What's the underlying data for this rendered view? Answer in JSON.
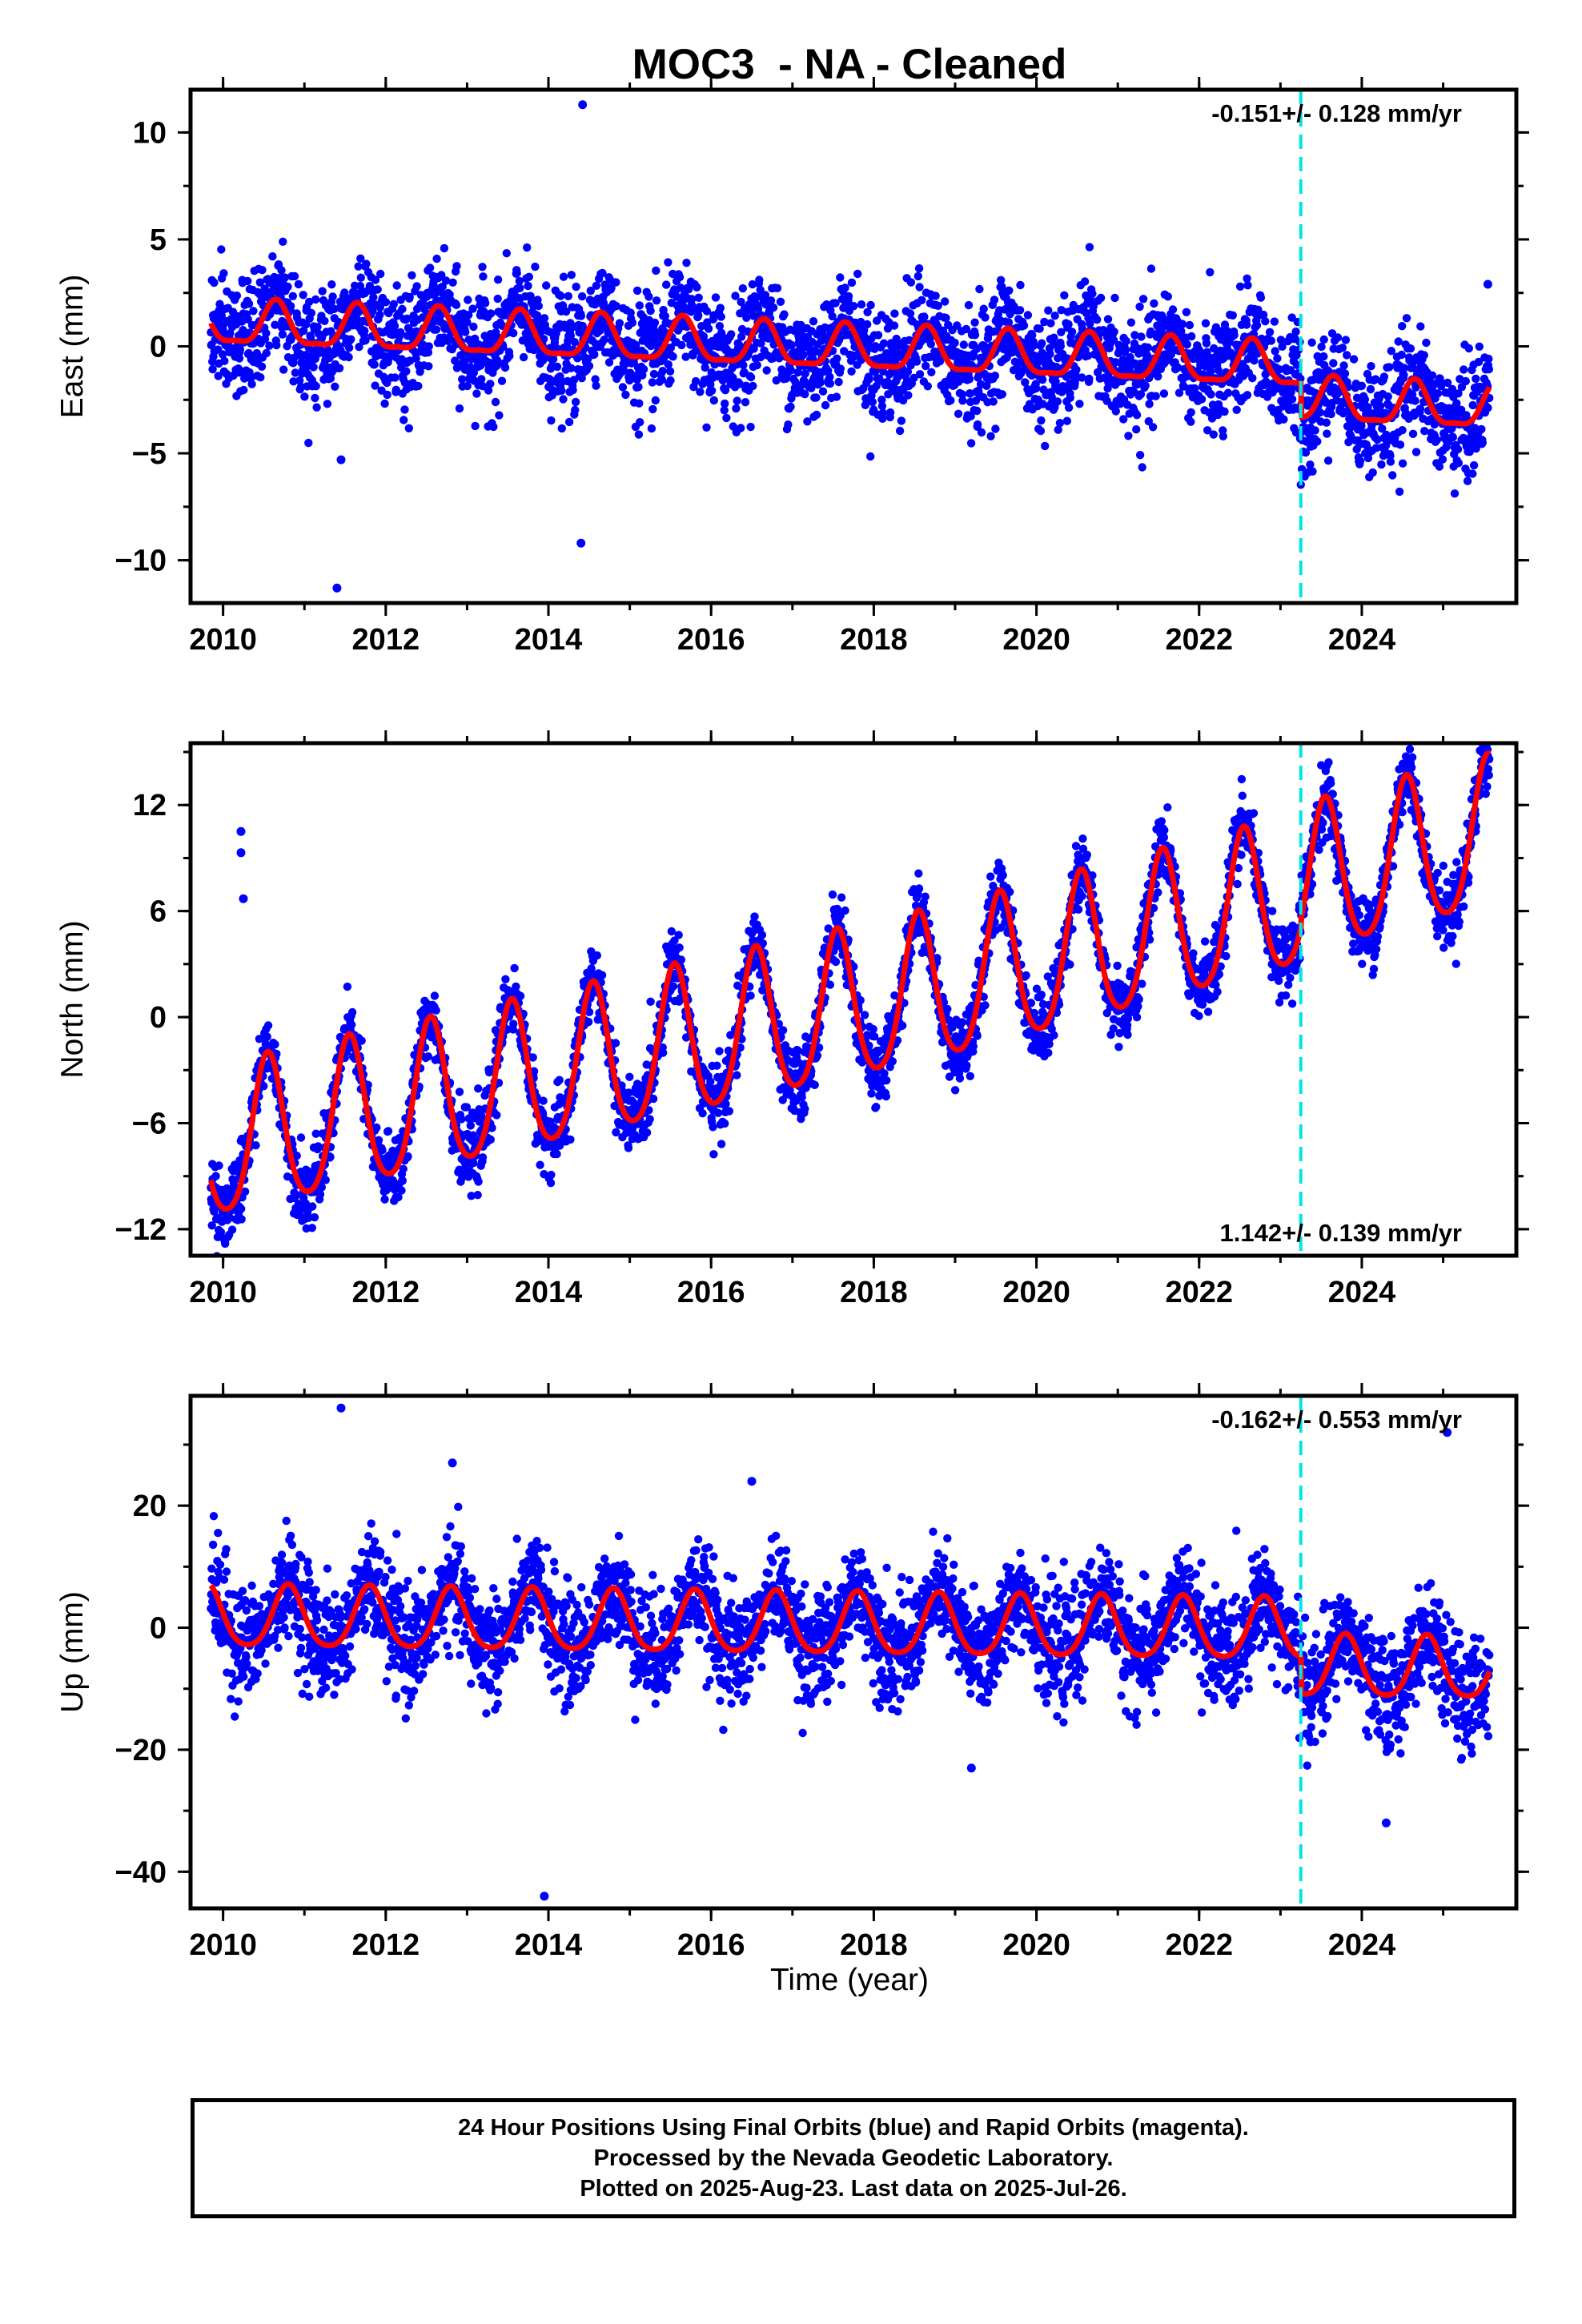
{
  "title": "MOC3  - NA - Cleaned",
  "xlabel": "Time (year)",
  "notes": [
    "24 Hour Positions Using Final Orbits (blue) and Rapid Orbits (magenta).",
    "Processed by the Nevada Geodetic Laboratory.",
    "Plotted on 2025-Aug-23. Last data on 2025-Jul-26."
  ],
  "colors": {
    "points": "#0000ff",
    "model": "#ff0000",
    "offset_line": "#00e5e5",
    "frame": "#000000"
  },
  "chart_data": [
    {
      "type": "scatter",
      "panel": "east",
      "ylabel": "East (mm)",
      "rate_label": "-0.151+/- 0.128 mm/yr",
      "rate_label_position": "top-right",
      "xlim": [
        2009.6,
        2025.9
      ],
      "ylim": [
        -12,
        12
      ],
      "xticks": [
        2010,
        2012,
        2014,
        2016,
        2018,
        2020,
        2022,
        2024
      ],
      "yticks": [
        -10,
        -5,
        0,
        5,
        10
      ],
      "offset_epoch": 2023.25,
      "data_span": [
        2009.85,
        2025.57
      ],
      "model": {
        "name": "fit",
        "intercept_at_2010": 1.0,
        "rate_mm_per_yr": -0.151,
        "annual_amp": 1.0,
        "annual_peak": 0.65,
        "semiannual_amp": 0.3,
        "offset_at_epoch": -1.6,
        "scatter_sd": 1.2
      },
      "outliers": [
        [
          2011.4,
          -11.3
        ],
        [
          2011.45,
          -5.3
        ],
        [
          2014.42,
          11.3
        ],
        [
          2014.4,
          -9.2
        ],
        [
          2025.55,
          2.9
        ]
      ]
    },
    {
      "type": "scatter",
      "panel": "north",
      "ylabel": "North (mm)",
      "rate_label": "1.142+/- 0.139 mm/yr",
      "rate_label_position": "bottom-right",
      "xlim": [
        2009.6,
        2025.9
      ],
      "ylim": [
        -13.5,
        15.5
      ],
      "xticks": [
        2010,
        2012,
        2014,
        2016,
        2018,
        2020,
        2022,
        2024
      ],
      "yticks": [
        -12,
        -6,
        0,
        6,
        12
      ],
      "offset_epoch": 2023.25,
      "data_span": [
        2009.85,
        2025.57
      ],
      "model": {
        "name": "fit",
        "intercept_at_2010": -7.3,
        "rate_mm_per_yr": 1.0,
        "annual_amp": 4.2,
        "annual_peak": 0.55,
        "semiannual_amp": 0.6,
        "offset_at_epoch": 0.5,
        "scatter_sd": 0.9,
        "late_rate_bump": 0.6
      },
      "outliers": [
        [
          2010.22,
          10.5
        ],
        [
          2010.22,
          9.3
        ],
        [
          2010.25,
          6.7
        ]
      ]
    },
    {
      "type": "scatter",
      "panel": "up",
      "ylabel": "Up (mm)",
      "rate_label": "-0.162+/- 0.553 mm/yr",
      "rate_label_position": "top-right",
      "xlim": [
        2009.6,
        2025.9
      ],
      "ylim": [
        -46,
        38
      ],
      "xticks": [
        2010,
        2012,
        2014,
        2016,
        2018,
        2020,
        2022,
        2024
      ],
      "yticks": [
        -40,
        -20,
        0,
        20
      ],
      "offset_epoch": 2023.25,
      "data_span": [
        2009.85,
        2025.57
      ],
      "model": {
        "name": "fit",
        "intercept_at_2010": 1.5,
        "rate_mm_per_yr": -0.162,
        "annual_amp": 5.0,
        "annual_peak": 0.8,
        "semiannual_amp": 0.8,
        "offset_at_epoch": -6.0,
        "scatter_sd": 4.0
      },
      "outliers": [
        [
          2011.45,
          36
        ],
        [
          2012.82,
          27
        ],
        [
          2016.5,
          24
        ],
        [
          2013.95,
          -44
        ],
        [
          2024.3,
          -32
        ],
        [
          2025.05,
          32
        ],
        [
          2019.2,
          -23
        ]
      ]
    }
  ]
}
